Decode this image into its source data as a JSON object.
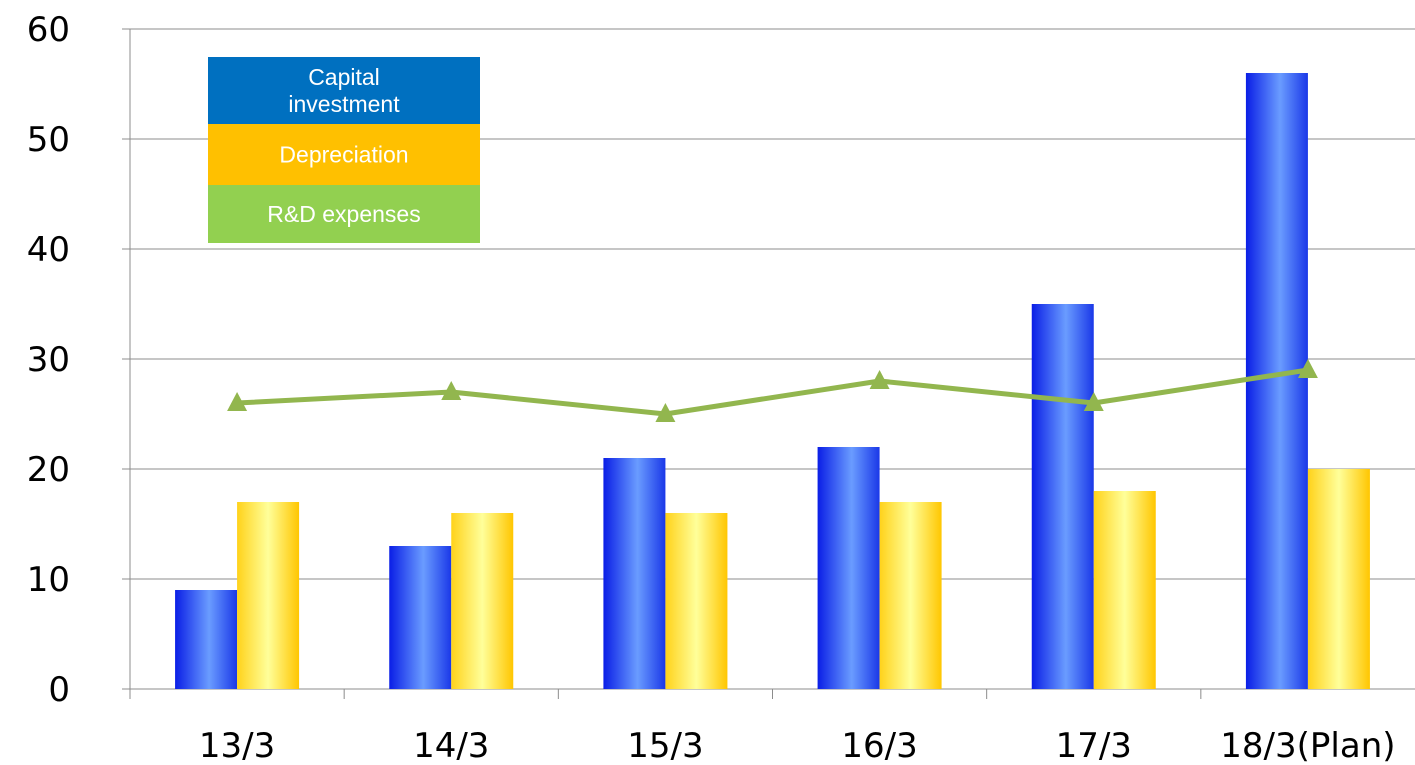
{
  "chart_data": {
    "type": "bar",
    "categories": [
      "13/3",
      "14/3",
      "15/3",
      "16/3",
      "17/3",
      "18/3(Plan)"
    ],
    "series": [
      {
        "name": "Capital investment",
        "kind": "bar",
        "color": "#2244dd",
        "values": [
          9,
          13,
          21,
          22,
          35,
          56
        ]
      },
      {
        "name": "Depreciation",
        "kind": "bar",
        "color": "#ffc000",
        "values": [
          17,
          16,
          16,
          17,
          18,
          20
        ]
      },
      {
        "name": "R&D expenses",
        "kind": "line",
        "marker": "triangle",
        "color": "#92b64e",
        "values": [
          26,
          27,
          25,
          28,
          26,
          29
        ]
      }
    ],
    "title": "",
    "xlabel": "",
    "ylabel": "",
    "ylim": [
      0,
      60
    ],
    "yticks": [
      0,
      10,
      20,
      30,
      40,
      50,
      60
    ],
    "grid": true,
    "legend_position": "top-left",
    "legend": [
      {
        "label_lines": [
          "Capital",
          "investment"
        ],
        "color": "#0070c0"
      },
      {
        "label_lines": [
          "Depreciation"
        ],
        "color": "#ffc000"
      },
      {
        "label_lines": [
          "R&D expenses"
        ],
        "color": "#92d050"
      }
    ]
  }
}
